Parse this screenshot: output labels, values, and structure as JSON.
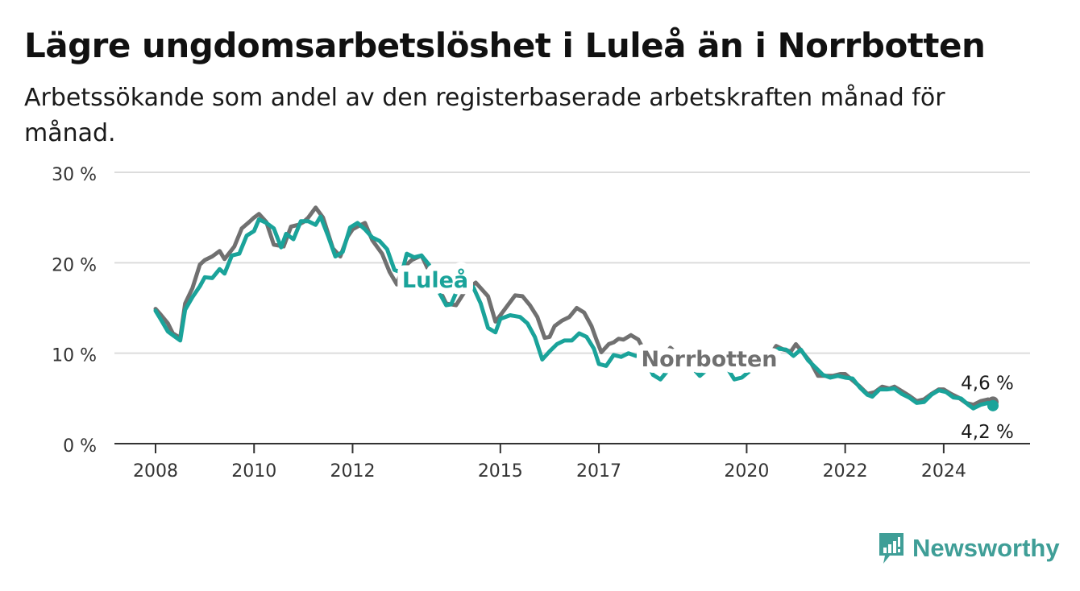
{
  "header": {
    "title": "Lägre ungdomsarbetslöshet i Luleå än i Norrbotten",
    "subtitle": "Arbetssökande som andel av den registerbaserade arbetskraften månad för månad."
  },
  "brand": {
    "name": "Newsworthy",
    "icon": "newsworthy-logo-icon",
    "color": "#3f9e97"
  },
  "chart_data": {
    "type": "line",
    "ylim": [
      0,
      30
    ],
    "xlim": [
      2008.0,
      2025.0
    ],
    "y_ticks": [
      0,
      10,
      20,
      30
    ],
    "y_tick_labels": [
      "0 %",
      "10 %",
      "20 %",
      "30 %"
    ],
    "x_ticks": [
      2008,
      2010,
      2012,
      2015,
      2017,
      2020,
      2022,
      2024
    ],
    "x_tick_labels": [
      "2008",
      "2010",
      "2012",
      "2015",
      "2017",
      "2020",
      "2022",
      "2024"
    ],
    "grid": true,
    "colors": {
      "Luleå": "#1aa39a",
      "Norrbotten": "#707070"
    },
    "series": [
      {
        "name": "Norrbotten",
        "label": "Norrbotten",
        "end_label": "4,6 %",
        "points": [
          [
            2008.0,
            14.9
          ],
          [
            2008.1,
            14.3
          ],
          [
            2008.25,
            13.3
          ],
          [
            2008.35,
            12.2
          ],
          [
            2008.5,
            11.7
          ],
          [
            2008.6,
            15.5
          ],
          [
            2008.75,
            17.2
          ],
          [
            2008.9,
            19.8
          ],
          [
            2009.0,
            20.3
          ],
          [
            2009.15,
            20.7
          ],
          [
            2009.3,
            21.3
          ],
          [
            2009.4,
            20.4
          ],
          [
            2009.6,
            21.8
          ],
          [
            2009.75,
            23.8
          ],
          [
            2009.9,
            24.5
          ],
          [
            2010.0,
            25.0
          ],
          [
            2010.1,
            25.4
          ],
          [
            2010.25,
            24.5
          ],
          [
            2010.4,
            22.0
          ],
          [
            2010.6,
            21.8
          ],
          [
            2010.75,
            24.0
          ],
          [
            2010.9,
            24.2
          ],
          [
            2011.0,
            24.5
          ],
          [
            2011.1,
            25.0
          ],
          [
            2011.25,
            26.1
          ],
          [
            2011.4,
            25.0
          ],
          [
            2011.6,
            21.6
          ],
          [
            2011.75,
            20.7
          ],
          [
            2011.9,
            22.9
          ],
          [
            2012.0,
            23.7
          ],
          [
            2012.1,
            24.0
          ],
          [
            2012.25,
            24.4
          ],
          [
            2012.4,
            22.5
          ],
          [
            2012.6,
            21.0
          ],
          [
            2012.75,
            19.0
          ],
          [
            2012.9,
            17.6
          ],
          [
            2013.0,
            19.3
          ],
          [
            2013.2,
            20.3
          ],
          [
            2013.4,
            20.8
          ],
          [
            2013.6,
            18.5
          ],
          [
            2013.75,
            17.2
          ],
          [
            2013.9,
            15.5
          ],
          [
            2014.1,
            15.3
          ],
          [
            2014.3,
            17.0
          ],
          [
            2014.5,
            17.8
          ],
          [
            2014.75,
            16.3
          ],
          [
            2014.9,
            13.5
          ],
          [
            2015.0,
            14.2
          ],
          [
            2015.15,
            15.3
          ],
          [
            2015.3,
            16.4
          ],
          [
            2015.45,
            16.3
          ],
          [
            2015.6,
            15.3
          ],
          [
            2015.75,
            14.0
          ],
          [
            2015.9,
            11.7
          ],
          [
            2016.0,
            11.8
          ],
          [
            2016.1,
            13.0
          ],
          [
            2016.25,
            13.6
          ],
          [
            2016.4,
            14.0
          ],
          [
            2016.55,
            15.0
          ],
          [
            2016.7,
            14.5
          ],
          [
            2016.85,
            13.0
          ],
          [
            2016.95,
            11.5
          ],
          [
            2017.05,
            10.1
          ],
          [
            2017.2,
            11.0
          ],
          [
            2017.3,
            11.2
          ],
          [
            2017.4,
            11.6
          ],
          [
            2017.5,
            11.5
          ],
          [
            2017.65,
            12.0
          ],
          [
            2017.8,
            11.5
          ],
          [
            2017.95,
            10.0
          ],
          [
            2018.0,
            8.6
          ],
          [
            2018.15,
            8.6
          ],
          [
            2018.3,
            9.6
          ],
          [
            2018.45,
            10.6
          ],
          [
            2018.8,
            9.0
          ],
          [
            2019.0,
            8.0
          ],
          [
            2019.2,
            8.5
          ],
          [
            2019.4,
            8.6
          ],
          [
            2019.6,
            9.3
          ],
          [
            2019.8,
            8.8
          ],
          [
            2020.0,
            8.3
          ],
          [
            2020.2,
            8.8
          ],
          [
            2020.4,
            9.2
          ],
          [
            2020.6,
            10.8
          ],
          [
            2020.75,
            10.4
          ],
          [
            2020.9,
            10.2
          ],
          [
            2021.0,
            11.0
          ],
          [
            2021.15,
            10.0
          ],
          [
            2021.3,
            9.0
          ],
          [
            2021.45,
            7.5
          ],
          [
            2021.6,
            7.5
          ],
          [
            2021.75,
            7.5
          ],
          [
            2021.9,
            7.7
          ],
          [
            2022.0,
            7.7
          ],
          [
            2022.15,
            7.0
          ],
          [
            2022.3,
            6.3
          ],
          [
            2022.45,
            5.5
          ],
          [
            2022.6,
            5.7
          ],
          [
            2022.75,
            6.3
          ],
          [
            2022.9,
            6.1
          ],
          [
            2023.0,
            6.3
          ],
          [
            2023.15,
            5.8
          ],
          [
            2023.3,
            5.3
          ],
          [
            2023.45,
            4.7
          ],
          [
            2023.6,
            4.9
          ],
          [
            2023.75,
            5.5
          ],
          [
            2023.9,
            6.0
          ],
          [
            2024.0,
            6.0
          ],
          [
            2024.15,
            5.5
          ],
          [
            2024.3,
            5.1
          ],
          [
            2024.45,
            4.5
          ],
          [
            2024.6,
            4.3
          ],
          [
            2024.75,
            4.7
          ],
          [
            2024.9,
            4.9
          ],
          [
            2025.0,
            4.6
          ]
        ]
      },
      {
        "name": "Luleå",
        "label": "Luleå",
        "end_label": "4,2 %",
        "points": [
          [
            2008.0,
            14.7
          ],
          [
            2008.1,
            13.8
          ],
          [
            2008.25,
            12.4
          ],
          [
            2008.35,
            12.0
          ],
          [
            2008.5,
            11.4
          ],
          [
            2008.6,
            14.8
          ],
          [
            2008.75,
            16.2
          ],
          [
            2008.9,
            17.4
          ],
          [
            2009.0,
            18.4
          ],
          [
            2009.15,
            18.3
          ],
          [
            2009.3,
            19.3
          ],
          [
            2009.4,
            18.8
          ],
          [
            2009.55,
            20.8
          ],
          [
            2009.7,
            21.0
          ],
          [
            2009.85,
            23.0
          ],
          [
            2010.0,
            23.5
          ],
          [
            2010.1,
            24.8
          ],
          [
            2010.25,
            24.4
          ],
          [
            2010.4,
            23.8
          ],
          [
            2010.55,
            21.7
          ],
          [
            2010.65,
            23.2
          ],
          [
            2010.8,
            22.6
          ],
          [
            2010.95,
            24.6
          ],
          [
            2011.1,
            24.6
          ],
          [
            2011.25,
            24.2
          ],
          [
            2011.35,
            25.1
          ],
          [
            2011.5,
            23.0
          ],
          [
            2011.65,
            20.7
          ],
          [
            2011.8,
            21.2
          ],
          [
            2011.95,
            23.9
          ],
          [
            2012.1,
            24.4
          ],
          [
            2012.25,
            23.7
          ],
          [
            2012.4,
            22.8
          ],
          [
            2012.55,
            22.4
          ],
          [
            2012.7,
            21.5
          ],
          [
            2012.85,
            19.2
          ],
          [
            2013.0,
            18.9
          ],
          [
            2013.1,
            21.0
          ],
          [
            2013.25,
            20.6
          ],
          [
            2013.4,
            20.8
          ],
          [
            2013.55,
            19.8
          ],
          [
            2013.75,
            16.8
          ],
          [
            2013.9,
            15.3
          ],
          [
            2014.0,
            15.4
          ],
          [
            2014.2,
            17.9
          ],
          [
            2014.45,
            17.3
          ],
          [
            2014.6,
            15.5
          ],
          [
            2014.75,
            12.8
          ],
          [
            2014.9,
            12.3
          ],
          [
            2015.0,
            13.8
          ],
          [
            2015.2,
            14.2
          ],
          [
            2015.4,
            14.0
          ],
          [
            2015.55,
            13.3
          ],
          [
            2015.7,
            11.8
          ],
          [
            2015.85,
            9.3
          ],
          [
            2016.0,
            10.2
          ],
          [
            2016.15,
            11.0
          ],
          [
            2016.3,
            11.4
          ],
          [
            2016.45,
            11.4
          ],
          [
            2016.6,
            12.2
          ],
          [
            2016.75,
            11.8
          ],
          [
            2016.9,
            10.5
          ],
          [
            2017.0,
            8.8
          ],
          [
            2017.15,
            8.6
          ],
          [
            2017.3,
            9.8
          ],
          [
            2017.45,
            9.6
          ],
          [
            2017.6,
            10.0
          ],
          [
            2017.75,
            9.7
          ],
          [
            2017.9,
            9.8
          ],
          [
            2018.1,
            7.6
          ],
          [
            2018.25,
            7.1
          ],
          [
            2018.4,
            8.1
          ],
          [
            2018.55,
            9.3
          ],
          [
            2018.85,
            8.7
          ],
          [
            2019.05,
            7.5
          ],
          [
            2019.2,
            8.2
          ],
          [
            2019.4,
            8.8
          ],
          [
            2019.6,
            8.4
          ],
          [
            2019.75,
            7.1
          ],
          [
            2019.9,
            7.3
          ],
          [
            2020.1,
            8.2
          ],
          [
            2020.3,
            9.0
          ],
          [
            2020.5,
            10.0
          ],
          [
            2020.65,
            10.5
          ],
          [
            2020.8,
            10.4
          ],
          [
            2020.95,
            9.7
          ],
          [
            2021.1,
            10.4
          ],
          [
            2021.25,
            9.2
          ],
          [
            2021.4,
            8.4
          ],
          [
            2021.55,
            7.6
          ],
          [
            2021.7,
            7.3
          ],
          [
            2021.85,
            7.5
          ],
          [
            2022.0,
            7.3
          ],
          [
            2022.15,
            7.2
          ],
          [
            2022.3,
            6.2
          ],
          [
            2022.45,
            5.4
          ],
          [
            2022.55,
            5.2
          ],
          [
            2022.7,
            6.0
          ],
          [
            2022.85,
            6.0
          ],
          [
            2023.0,
            6.1
          ],
          [
            2023.15,
            5.5
          ],
          [
            2023.3,
            5.1
          ],
          [
            2023.45,
            4.5
          ],
          [
            2023.6,
            4.6
          ],
          [
            2023.75,
            5.4
          ],
          [
            2023.9,
            5.9
          ],
          [
            2024.05,
            5.7
          ],
          [
            2024.2,
            5.1
          ],
          [
            2024.35,
            5.0
          ],
          [
            2024.5,
            4.3
          ],
          [
            2024.6,
            3.9
          ],
          [
            2024.75,
            4.3
          ],
          [
            2024.9,
            4.5
          ],
          [
            2025.0,
            4.2
          ]
        ]
      }
    ]
  }
}
